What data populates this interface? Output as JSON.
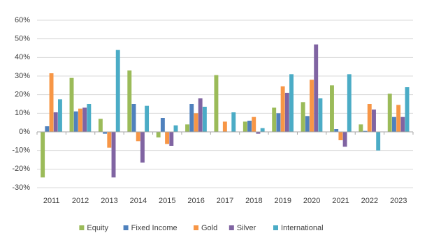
{
  "chart_data": {
    "type": "bar",
    "categories": [
      "2011",
      "2012",
      "2013",
      "2014",
      "2015",
      "2016",
      "2017",
      "2018",
      "2019",
      "2020",
      "2021",
      "2022",
      "2023"
    ],
    "series": [
      {
        "name": "Equity",
        "color": "#9bbb59",
        "values": [
          -24.5,
          29,
          7,
          33,
          -3,
          4,
          30.5,
          5.5,
          13,
          16,
          25,
          4,
          20.5
        ]
      },
      {
        "name": "Fixed Income",
        "color": "#4f81bd",
        "values": [
          3,
          11,
          -1,
          15,
          7.5,
          15,
          0,
          6,
          10,
          8.5,
          1.5,
          0.5,
          8
        ]
      },
      {
        "name": "Gold",
        "color": "#f79646",
        "values": [
          31.5,
          12.5,
          -8.5,
          -5,
          -6.5,
          10,
          5.5,
          8,
          24.5,
          28,
          -4.5,
          15,
          14.5
        ]
      },
      {
        "name": "Silver",
        "color": "#8064a2",
        "values": [
          10.5,
          13,
          -24.5,
          -16.5,
          -7.5,
          18,
          0,
          -1,
          21,
          47,
          -8,
          12,
          8
        ]
      },
      {
        "name": "International",
        "color": "#4bacc6",
        "values": [
          17.5,
          15,
          44,
          14,
          3.5,
          13.5,
          10.5,
          2,
          31,
          18,
          31,
          -10,
          24
        ]
      }
    ],
    "ylim": [
      -30,
      60
    ],
    "yticks": [
      {
        "value": -30,
        "label": "-30%"
      },
      {
        "value": -20,
        "label": "-20%"
      },
      {
        "value": -10,
        "label": "-10%"
      },
      {
        "value": 0,
        "label": "0%"
      },
      {
        "value": 10,
        "label": "10%"
      },
      {
        "value": 20,
        "label": "20%"
      },
      {
        "value": 30,
        "label": "30%"
      },
      {
        "value": 40,
        "label": "40%"
      },
      {
        "value": 50,
        "label": "50%"
      },
      {
        "value": 60,
        "label": "60%"
      }
    ],
    "grid": true,
    "legend": "bottom"
  }
}
